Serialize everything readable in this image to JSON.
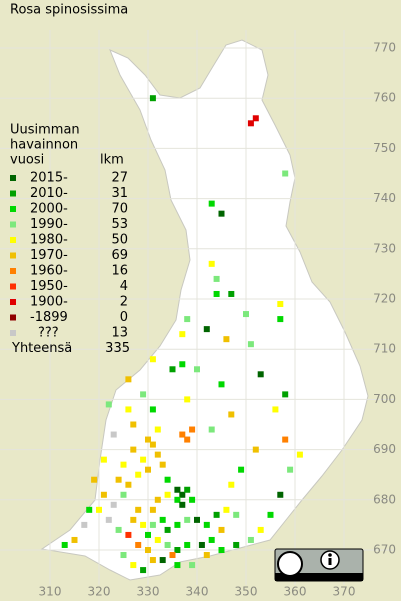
{
  "title": "Rosa spinosissima",
  "legend": {
    "heading": [
      "Uusimman",
      "havainnon",
      "vuosi"
    ],
    "count_heading": "lkm",
    "rows": [
      {
        "label": "2015-",
        "count": 27,
        "color": "#006400"
      },
      {
        "label": "2010-",
        "count": 31,
        "color": "#00a000"
      },
      {
        "label": "2000-",
        "count": 70,
        "color": "#00d800"
      },
      {
        "label": "1990-",
        "count": 53,
        "color": "#7ce87c"
      },
      {
        "label": "1980-",
        "count": 50,
        "color": "#ffff00"
      },
      {
        "label": "1970-",
        "count": 69,
        "color": "#f0c000"
      },
      {
        "label": "1960-",
        "count": 16,
        "color": "#ff8000"
      },
      {
        "label": "1950-",
        "count": 4,
        "color": "#ff3000"
      },
      {
        "label": "1900-",
        "count": 2,
        "color": "#e00000"
      },
      {
        "label": "-1899",
        "count": 0,
        "color": "#900000"
      },
      {
        "label": "???",
        "count": 13,
        "color": "#c8c8c8"
      }
    ],
    "total_label": "Yhteensä",
    "total": 335
  },
  "axes": {
    "x_ticks": [
      310,
      320,
      330,
      340,
      350,
      360,
      370
    ],
    "y_ticks": [
      770,
      760,
      750,
      740,
      730,
      720,
      710,
      700,
      690,
      680,
      670
    ]
  },
  "records": [
    [
      351,
      755,
      8
    ],
    [
      352,
      756,
      8
    ],
    [
      331,
      760,
      1
    ],
    [
      358,
      745,
      3
    ],
    [
      343,
      739,
      2
    ],
    [
      345,
      737,
      0
    ],
    [
      343,
      727,
      4
    ],
    [
      344,
      724,
      3
    ],
    [
      344,
      721,
      2
    ],
    [
      347,
      721,
      1
    ],
    [
      350,
      717,
      3
    ],
    [
      357,
      719,
      4
    ],
    [
      357,
      716,
      2
    ],
    [
      338,
      716,
      3
    ],
    [
      337,
      713,
      4
    ],
    [
      337,
      707,
      2
    ],
    [
      340,
      706,
      3
    ],
    [
      342,
      714,
      0
    ],
    [
      346,
      712,
      5
    ],
    [
      351,
      711,
      3
    ],
    [
      331,
      708,
      4
    ],
    [
      335,
      706,
      1
    ],
    [
      326,
      704,
      5
    ],
    [
      329,
      701,
      3
    ],
    [
      331,
      698,
      2
    ],
    [
      326,
      698,
      4
    ],
    [
      322,
      699,
      3
    ],
    [
      353,
      705,
      0
    ],
    [
      356,
      698,
      4
    ],
    [
      358,
      701,
      1
    ],
    [
      345,
      703,
      2
    ],
    [
      347,
      697,
      5
    ],
    [
      338,
      700,
      4
    ],
    [
      343,
      694,
      3
    ],
    [
      337,
      693,
      6
    ],
    [
      338,
      692,
      6
    ],
    [
      339,
      694,
      6
    ],
    [
      330,
      692,
      5
    ],
    [
      331,
      691,
      5
    ],
    [
      332,
      689,
      5
    ],
    [
      329,
      688,
      4
    ],
    [
      327,
      690,
      5
    ],
    [
      325,
      687,
      4
    ],
    [
      324,
      684,
      5
    ],
    [
      326,
      683,
      5
    ],
    [
      328,
      685,
      4
    ],
    [
      330,
      686,
      5
    ],
    [
      333,
      687,
      5
    ],
    [
      334,
      684,
      2
    ],
    [
      336,
      682,
      0
    ],
    [
      337,
      681,
      0
    ],
    [
      338,
      682,
      1
    ],
    [
      336,
      680,
      2
    ],
    [
      337,
      679,
      0
    ],
    [
      339,
      680,
      2
    ],
    [
      334,
      681,
      4
    ],
    [
      332,
      680,
      5
    ],
    [
      331,
      678,
      5
    ],
    [
      328,
      678,
      5
    ],
    [
      327,
      676,
      5
    ],
    [
      329,
      675,
      4
    ],
    [
      330,
      673,
      2
    ],
    [
      331,
      675,
      3
    ],
    [
      333,
      676,
      2
    ],
    [
      334,
      674,
      1
    ],
    [
      336,
      675,
      2
    ],
    [
      338,
      676,
      3
    ],
    [
      340,
      676,
      0
    ],
    [
      342,
      675,
      2
    ],
    [
      344,
      677,
      1
    ],
    [
      346,
      678,
      4
    ],
    [
      348,
      677,
      3
    ],
    [
      345,
      674,
      5
    ],
    [
      343,
      672,
      2
    ],
    [
      341,
      671,
      0
    ],
    [
      338,
      671,
      2
    ],
    [
      336,
      670,
      1
    ],
    [
      334,
      671,
      3
    ],
    [
      332,
      672,
      4
    ],
    [
      330,
      670,
      5
    ],
    [
      328,
      671,
      6
    ],
    [
      326,
      673,
      7
    ],
    [
      324,
      674,
      3
    ],
    [
      322,
      676,
      10
    ],
    [
      320,
      678,
      4
    ],
    [
      321,
      681,
      5
    ],
    [
      323,
      679,
      10
    ],
    [
      318,
      678,
      2
    ],
    [
      317,
      675,
      10
    ],
    [
      315,
      672,
      5
    ],
    [
      313,
      671,
      2
    ],
    [
      325,
      669,
      3
    ],
    [
      327,
      667,
      4
    ],
    [
      329,
      666,
      1
    ],
    [
      331,
      668,
      5
    ],
    [
      333,
      668,
      0
    ],
    [
      336,
      667,
      2
    ],
    [
      339,
      667,
      3
    ],
    [
      342,
      669,
      5
    ],
    [
      345,
      670,
      2
    ],
    [
      348,
      671,
      1
    ],
    [
      351,
      672,
      3
    ],
    [
      353,
      674,
      4
    ],
    [
      355,
      677,
      2
    ],
    [
      357,
      681,
      0
    ],
    [
      359,
      686,
      3
    ],
    [
      361,
      689,
      4
    ],
    [
      358,
      692,
      6
    ],
    [
      352,
      690,
      5
    ],
    [
      349,
      686,
      2
    ],
    [
      347,
      683,
      4
    ],
    [
      323,
      693,
      10
    ],
    [
      327,
      695,
      5
    ],
    [
      332,
      694,
      4
    ],
    [
      321,
      688,
      4
    ],
    [
      319,
      684,
      5
    ],
    [
      325,
      681,
      3
    ],
    [
      335,
      669,
      6
    ]
  ]
}
